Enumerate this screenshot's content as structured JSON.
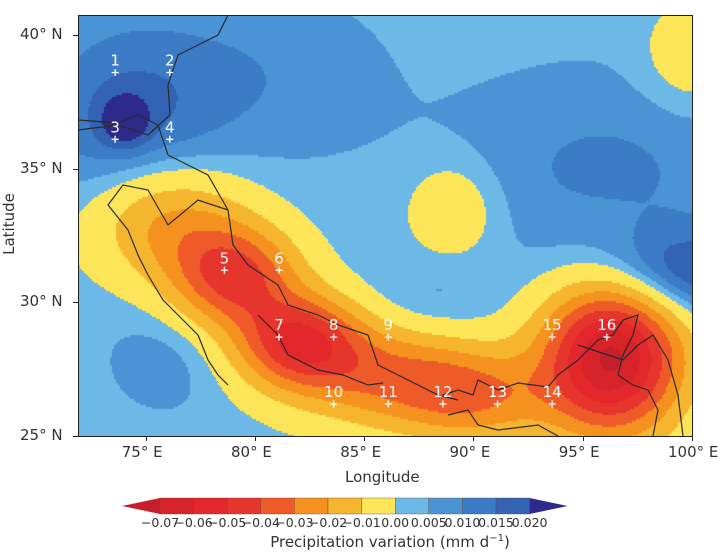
{
  "chart_data": {
    "type": "contour-map",
    "xlabel": "Longitude",
    "ylabel": "Latitude",
    "xlim": [
      71.9,
      100
    ],
    "ylim": [
      25,
      40.75
    ],
    "x_ticks": [
      {
        "value": 75,
        "label": "75° E"
      },
      {
        "value": 80,
        "label": "80° E"
      },
      {
        "value": 85,
        "label": "85° E"
      },
      {
        "value": 90,
        "label": "90° E"
      },
      {
        "value": 95,
        "label": "95° E"
      },
      {
        "value": 100,
        "label": "100° E"
      }
    ],
    "y_ticks": [
      {
        "value": 40,
        "label": "40° N"
      },
      {
        "value": 35,
        "label": "35° N"
      },
      {
        "value": 30,
        "label": "30° N"
      },
      {
        "value": 25,
        "label": "25° N"
      }
    ],
    "colorbar": {
      "title": "Precipitation variation (mm d",
      "title_sup": "−1",
      "title_end": ")",
      "levels": [
        -0.07,
        -0.06,
        -0.05,
        -0.04,
        -0.03,
        -0.02,
        -0.01,
        0.0,
        0.005,
        0.01,
        0.015,
        0.02
      ],
      "tick_labels": [
        "−0.07",
        "−0.06",
        "−0.05",
        "−0.04",
        "−0.03",
        "−0.02",
        "−0.01",
        "0.00",
        "0.005",
        "0.010",
        "0.015",
        "0.020"
      ],
      "colors": [
        "#c41f2b",
        "#d8232a",
        "#e4272b",
        "#e6352c",
        "#ef5a29",
        "#f5921f",
        "#f6b52e",
        "#fde55a",
        "#6cb8e6",
        "#4a93d4",
        "#3c7cc6",
        "#3363b3",
        "#2e2a8c"
      ],
      "extend": "both"
    },
    "stations": [
      {
        "label": "1",
        "lon": 73.6,
        "lat": 38.6
      },
      {
        "label": "2",
        "lon": 76.1,
        "lat": 38.6
      },
      {
        "label": "3",
        "lon": 73.6,
        "lat": 36.1
      },
      {
        "label": "4",
        "lon": 76.1,
        "lat": 36.1
      },
      {
        "label": "5",
        "lon": 78.6,
        "lat": 31.2
      },
      {
        "label": "6",
        "lon": 81.1,
        "lat": 31.2
      },
      {
        "label": "7",
        "lon": 81.1,
        "lat": 28.7
      },
      {
        "label": "8",
        "lon": 83.6,
        "lat": 28.7
      },
      {
        "label": "9",
        "lon": 86.1,
        "lat": 28.7
      },
      {
        "label": "10",
        "lon": 83.6,
        "lat": 26.2
      },
      {
        "label": "11",
        "lon": 86.1,
        "lat": 26.2
      },
      {
        "label": "12",
        "lon": 88.6,
        "lat": 26.2
      },
      {
        "label": "13",
        "lon": 91.1,
        "lat": 26.2
      },
      {
        "label": "14",
        "lon": 93.6,
        "lat": 26.2
      },
      {
        "label": "15",
        "lon": 93.6,
        "lat": 28.7
      },
      {
        "label": "16",
        "lon": 96.1,
        "lat": 28.7
      }
    ]
  }
}
